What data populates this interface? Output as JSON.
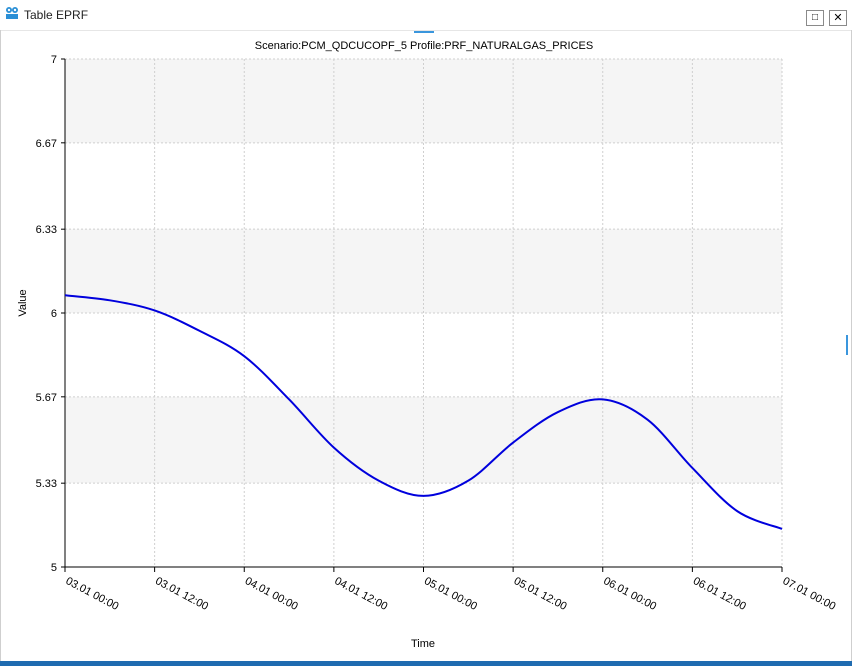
{
  "window": {
    "title": "Table EPRF",
    "icon": "app-logo-icon",
    "maximize_symbol": "□",
    "close_symbol": "✕"
  },
  "chart_data": {
    "type": "line",
    "title": "Scenario:PCM_QDCUCOPF_5  Profile:PRF_NATURALGAS_PRICES",
    "xlabel": "Time",
    "ylabel": "Value",
    "ylim": [
      5,
      7
    ],
    "y_ticks": [
      5,
      5.33,
      5.67,
      6,
      6.33,
      6.67,
      7
    ],
    "x_ticks": [
      "03.01 00:00",
      "03.01 12:00",
      "04.01 00:00",
      "04.01 12:00",
      "05.01 00:00",
      "05.01 12:00",
      "06.01 00:00",
      "06.01 12:00",
      "07.01 00:00"
    ],
    "grid": true,
    "series": [
      {
        "color": "#0000dd",
        "points": [
          {
            "x": "03.01 00:00",
            "y": 6.07
          },
          {
            "x": "03.01 06:00",
            "y": 6.05
          },
          {
            "x": "03.01 12:00",
            "y": 6.01
          },
          {
            "x": "03.01 18:00",
            "y": 5.93
          },
          {
            "x": "04.01 00:00",
            "y": 5.83
          },
          {
            "x": "04.01 06:00",
            "y": 5.66
          },
          {
            "x": "04.01 12:00",
            "y": 5.47
          },
          {
            "x": "04.01 18:00",
            "y": 5.34
          },
          {
            "x": "05.01 00:00",
            "y": 5.28
          },
          {
            "x": "05.01 06:00",
            "y": 5.34
          },
          {
            "x": "05.01 12:00",
            "y": 5.49
          },
          {
            "x": "05.01 18:00",
            "y": 5.61
          },
          {
            "x": "06.01 00:00",
            "y": 5.66
          },
          {
            "x": "06.01 06:00",
            "y": 5.58
          },
          {
            "x": "06.01 12:00",
            "y": 5.39
          },
          {
            "x": "06.01 18:00",
            "y": 5.22
          },
          {
            "x": "07.01 00:00",
            "y": 5.15
          }
        ]
      }
    ]
  }
}
